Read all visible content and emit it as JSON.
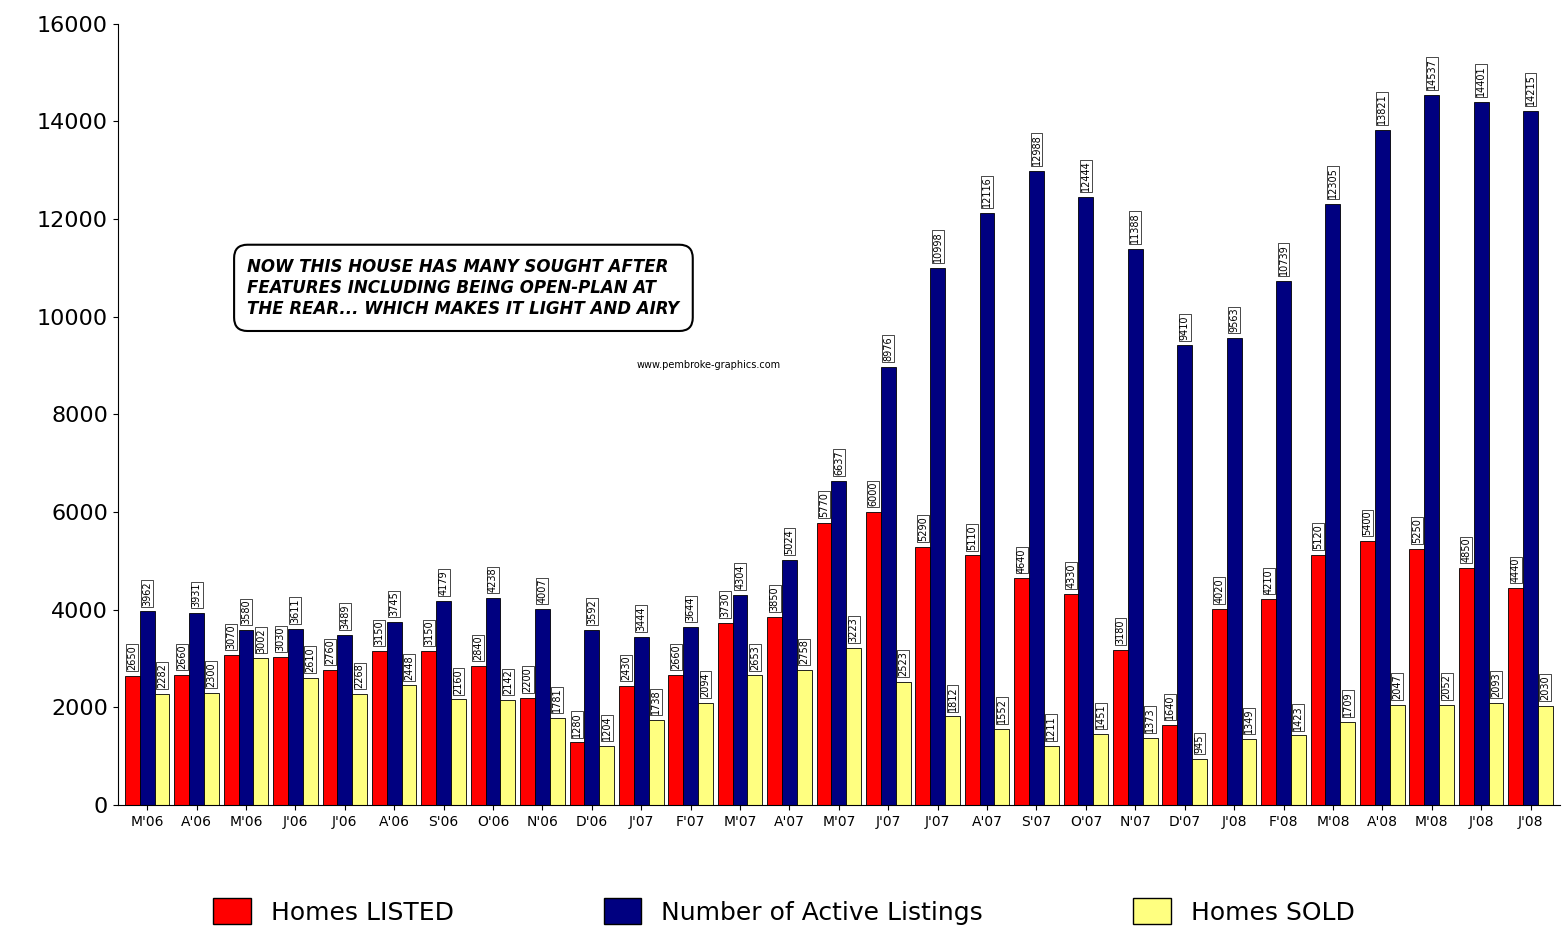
{
  "chart_data": {
    "type": "bar",
    "categories": [
      "M'06",
      "A'06",
      "M'06",
      "J'06",
      "J'06",
      "A'06",
      "S'06",
      "O'06",
      "N'06",
      "D'06",
      "J'07",
      "F'07",
      "M'07",
      "A'07",
      "M'07",
      "J'07",
      "J'07",
      "A'07",
      "S'07",
      "O'07",
      "N'07",
      "D'07",
      "J'08",
      "F'08",
      "M'08",
      "A'08",
      "M'08",
      "J'08",
      "J'08"
    ],
    "series": [
      {
        "name": "Homes LISTED",
        "color": "#ff0000",
        "values": [
          2650,
          2660,
          3070,
          3030,
          2760,
          3150,
          3150,
          2840,
          2200,
          1280,
          2430,
          2660,
          3730,
          3850,
          5770,
          6000,
          5290,
          5110,
          4640,
          4330,
          3180,
          1640,
          4020,
          4210,
          5120,
          5400,
          5250,
          4850,
          4440
        ]
      },
      {
        "name": "Number of Active Listings",
        "color": "#000080",
        "values": [
          3962,
          3931,
          3580,
          3611,
          3489,
          3745,
          4179,
          4238,
          4007,
          3592,
          3444,
          3644,
          4304,
          5024,
          6637,
          8976,
          10998,
          12116,
          12988,
          12444,
          11388,
          9410,
          9563,
          10739,
          12305,
          13821,
          14537,
          14401,
          14215
        ]
      },
      {
        "name": "Homes SOLD",
        "color": "#ffff80",
        "values": [
          2282,
          2300,
          3002,
          2610,
          2268,
          2448,
          2160,
          2142,
          1781,
          1204,
          1738,
          2094,
          2653,
          2758,
          3223,
          2523,
          1812,
          1552,
          1211,
          1451,
          1373,
          945,
          1349,
          1423,
          1709,
          2047,
          2052,
          2093,
          2030
        ]
      }
    ],
    "ylim": [
      0,
      16000
    ],
    "yticks": [
      0,
      2000,
      4000,
      6000,
      8000,
      10000,
      12000,
      14000,
      16000
    ],
    "grid": false,
    "legend": "lower center",
    "data_labels": true,
    "annotations": [
      "NOW THIS HOUSE HAS MANY SOUGHT AFTER\nFEATURES INCLUDING BEING OPEN-PLAN AT\nTHE REAR... WHICH MAKES IT LIGHT AND AIRY",
      "www.pembroke-graphics.com"
    ]
  }
}
